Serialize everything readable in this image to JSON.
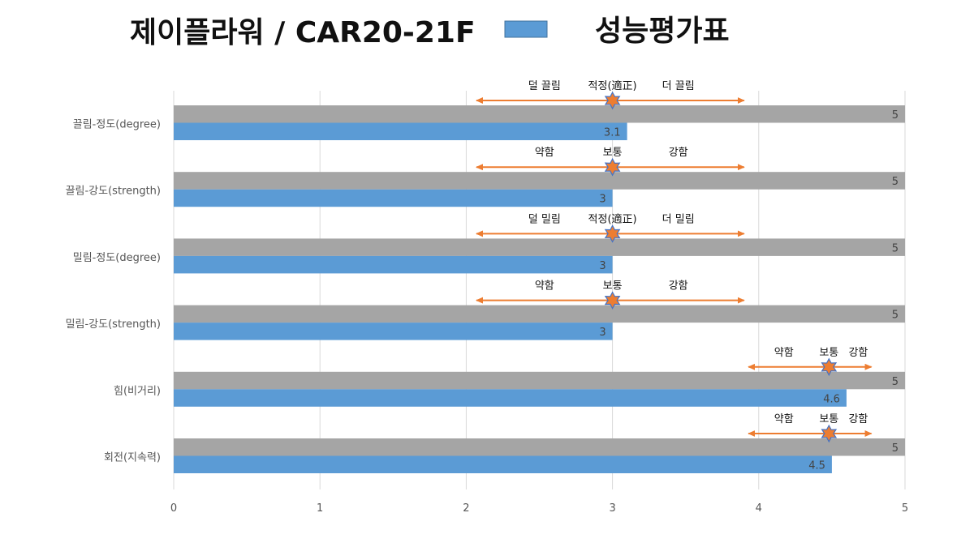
{
  "header": {
    "title": "제이플라워 / CAR20-21F",
    "legend_label": "성능평가표",
    "legend_color": "#5B9BD5"
  },
  "chart_data": {
    "type": "bar",
    "orientation": "horizontal",
    "title": "제이플라워 / CAR20-21F",
    "categories": [
      "끌림-정도(degree)",
      "끌림-강도(strength)",
      "밀림-정도(degree)",
      "밀림-강도(strength)",
      "힘(비거리)",
      "회전(지속력)"
    ],
    "series": [
      {
        "name": "",
        "color": "#A5A5A5",
        "values": [
          5,
          5,
          5,
          5,
          5,
          5
        ]
      },
      {
        "name": "성능평가표",
        "color": "#5B9BD5",
        "values": [
          3.1,
          3,
          3,
          3,
          4.6,
          4.5
        ]
      }
    ],
    "xlim": [
      0,
      5
    ],
    "xticks": [
      0,
      1,
      2,
      3,
      4,
      5
    ],
    "grid": true,
    "legend_position": "top",
    "annotations": [
      {
        "labels": [
          "덜 끌림",
          "적정(適正)",
          "더 끌림"
        ],
        "range": [
          2.07,
          3.9
        ],
        "center": 3
      },
      {
        "labels": [
          "약함",
          "보통",
          "강함"
        ],
        "range": [
          2.07,
          3.9
        ],
        "center": 3
      },
      {
        "labels": [
          "덜 밀림",
          "적정(適正)",
          "더 밀림"
        ],
        "range": [
          2.07,
          3.9
        ],
        "center": 3
      },
      {
        "labels": [
          "약함",
          "보통",
          "강함"
        ],
        "range": [
          2.07,
          3.9
        ],
        "center": 3
      },
      {
        "labels": [
          "약함",
          "보통",
          "강함"
        ],
        "range": [
          3.93,
          4.77
        ],
        "center": 4.48
      },
      {
        "labels": [
          "약함",
          "보통",
          "강함"
        ],
        "range": [
          3.93,
          4.77
        ],
        "center": 4.48
      }
    ],
    "annotation_color": "#ED7D31",
    "star_fill": "#ED7D31",
    "star_stroke": "#4472C4"
  }
}
